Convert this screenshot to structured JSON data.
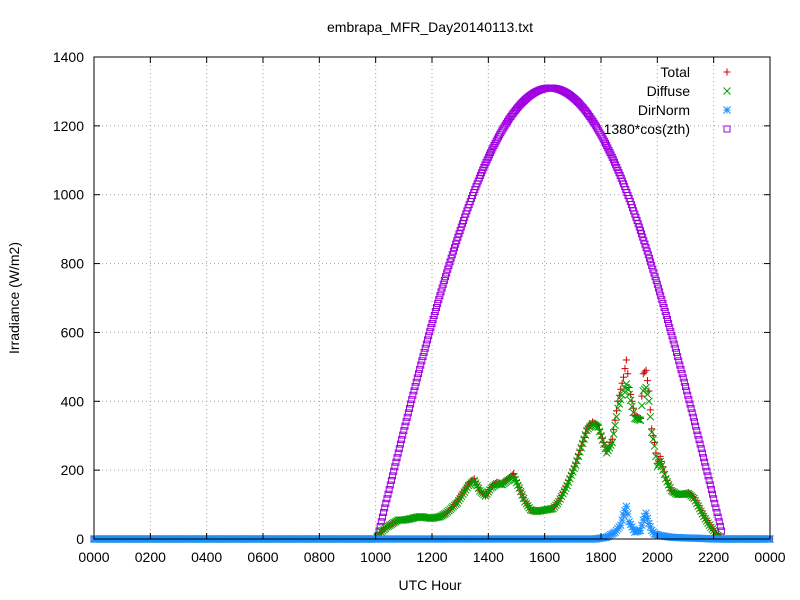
{
  "chart_data": {
    "type": "scatter",
    "title": "embrapa_MFR_Day20140113.txt",
    "xlabel": "UTC Hour",
    "ylabel": "Irradiance (W/m2)",
    "xlim": [
      0,
      24
    ],
    "ylim": [
      0,
      1400
    ],
    "grid": true,
    "legend_position": "top-right",
    "x_ticks": [
      {
        "value": 0,
        "label": "0000"
      },
      {
        "value": 2,
        "label": "0200"
      },
      {
        "value": 4,
        "label": "0400"
      },
      {
        "value": 6,
        "label": "0600"
      },
      {
        "value": 8,
        "label": "0800"
      },
      {
        "value": 10,
        "label": "1000"
      },
      {
        "value": 12,
        "label": "1200"
      },
      {
        "value": 14,
        "label": "1400"
      },
      {
        "value": 16,
        "label": "1600"
      },
      {
        "value": 18,
        "label": "1800"
      },
      {
        "value": 20,
        "label": "2000"
      },
      {
        "value": 22,
        "label": "2200"
      },
      {
        "value": 24,
        "label": "0000"
      }
    ],
    "y_ticks": [
      0,
      200,
      400,
      600,
      800,
      1000,
      1200,
      1400
    ],
    "series": [
      {
        "name": "Total",
        "marker": "plus",
        "color": "#d00000",
        "points": [
          [
            0,
            0
          ],
          [
            2,
            0
          ],
          [
            4,
            0
          ],
          [
            6,
            0
          ],
          [
            8,
            0
          ],
          [
            10,
            0
          ],
          [
            10.2,
            20
          ],
          [
            10.4,
            35
          ],
          [
            10.6,
            45
          ],
          [
            10.8,
            55
          ],
          [
            11,
            55
          ],
          [
            11.2,
            58
          ],
          [
            11.4,
            62
          ],
          [
            11.6,
            65
          ],
          [
            11.8,
            62
          ],
          [
            12,
            60
          ],
          [
            12.3,
            65
          ],
          [
            12.5,
            75
          ],
          [
            12.7,
            90
          ],
          [
            12.9,
            110
          ],
          [
            13.1,
            135
          ],
          [
            13.3,
            160
          ],
          [
            13.5,
            175
          ],
          [
            13.7,
            140
          ],
          [
            13.9,
            125
          ],
          [
            14.1,
            150
          ],
          [
            14.3,
            165
          ],
          [
            14.5,
            160
          ],
          [
            14.7,
            175
          ],
          [
            14.9,
            190
          ],
          [
            15.1,
            150
          ],
          [
            15.3,
            110
          ],
          [
            15.5,
            85
          ],
          [
            15.7,
            80
          ],
          [
            16.3,
            90
          ],
          [
            16.5,
            110
          ],
          [
            16.8,
            160
          ],
          [
            17.1,
            220
          ],
          [
            17.3,
            270
          ],
          [
            17.5,
            320
          ],
          [
            17.7,
            340
          ],
          [
            17.9,
            330
          ],
          [
            18.1,
            280
          ],
          [
            18.2,
            255
          ],
          [
            18.4,
            290
          ],
          [
            18.6,
            400
          ],
          [
            18.8,
            470
          ],
          [
            18.9,
            520
          ],
          [
            19.0,
            440
          ],
          [
            19.2,
            360
          ],
          [
            19.4,
            350
          ],
          [
            19.5,
            480
          ],
          [
            19.6,
            490
          ],
          [
            19.7,
            430
          ],
          [
            19.8,
            320
          ],
          [
            19.9,
            280
          ],
          [
            20.0,
            220
          ],
          [
            20.1,
            240
          ],
          [
            20.3,
            180
          ],
          [
            20.5,
            140
          ],
          [
            20.7,
            130
          ],
          [
            20.9,
            130
          ],
          [
            21.1,
            135
          ],
          [
            21.3,
            120
          ],
          [
            21.5,
            90
          ],
          [
            21.7,
            60
          ],
          [
            21.9,
            35
          ],
          [
            22.1,
            15
          ],
          [
            22.3,
            0
          ],
          [
            24,
            0
          ]
        ]
      },
      {
        "name": "Diffuse",
        "marker": "cross",
        "color": "#00a000",
        "points": [
          [
            0,
            0
          ],
          [
            2,
            0
          ],
          [
            4,
            0
          ],
          [
            6,
            0
          ],
          [
            8,
            0
          ],
          [
            10,
            0
          ],
          [
            10.2,
            20
          ],
          [
            10.4,
            35
          ],
          [
            10.6,
            45
          ],
          [
            10.8,
            55
          ],
          [
            11,
            55
          ],
          [
            11.2,
            58
          ],
          [
            11.4,
            62
          ],
          [
            11.6,
            65
          ],
          [
            11.8,
            62
          ],
          [
            12,
            60
          ],
          [
            12.3,
            65
          ],
          [
            12.5,
            75
          ],
          [
            12.7,
            90
          ],
          [
            12.9,
            105
          ],
          [
            13.1,
            130
          ],
          [
            13.3,
            155
          ],
          [
            13.5,
            170
          ],
          [
            13.7,
            140
          ],
          [
            13.9,
            125
          ],
          [
            14.1,
            148
          ],
          [
            14.3,
            160
          ],
          [
            14.5,
            158
          ],
          [
            14.7,
            170
          ],
          [
            14.9,
            180
          ],
          [
            15.1,
            148
          ],
          [
            15.3,
            108
          ],
          [
            15.5,
            85
          ],
          [
            15.7,
            80
          ],
          [
            16.3,
            88
          ],
          [
            16.5,
            108
          ],
          [
            16.8,
            155
          ],
          [
            17.1,
            215
          ],
          [
            17.3,
            265
          ],
          [
            17.5,
            315
          ],
          [
            17.7,
            335
          ],
          [
            17.9,
            325
          ],
          [
            18.1,
            275
          ],
          [
            18.2,
            250
          ],
          [
            18.4,
            280
          ],
          [
            18.6,
            380
          ],
          [
            18.8,
            430
          ],
          [
            18.9,
            450
          ],
          [
            19.0,
            420
          ],
          [
            19.2,
            350
          ],
          [
            19.4,
            345
          ],
          [
            19.5,
            430
          ],
          [
            19.6,
            440
          ],
          [
            19.7,
            400
          ],
          [
            19.8,
            310
          ],
          [
            19.9,
            270
          ],
          [
            20.0,
            210
          ],
          [
            20.1,
            225
          ],
          [
            20.3,
            175
          ],
          [
            20.5,
            140
          ],
          [
            20.7,
            130
          ],
          [
            20.9,
            130
          ],
          [
            21.1,
            132
          ],
          [
            21.3,
            118
          ],
          [
            21.5,
            88
          ],
          [
            21.7,
            58
          ],
          [
            21.9,
            34
          ],
          [
            22.1,
            14
          ],
          [
            22.3,
            0
          ],
          [
            24,
            0
          ]
        ]
      },
      {
        "name": "DirNorm",
        "marker": "star",
        "color": "#1e90ff",
        "points": [
          [
            0,
            0
          ],
          [
            2,
            0
          ],
          [
            4,
            0
          ],
          [
            6,
            0
          ],
          [
            8,
            0
          ],
          [
            10,
            0
          ],
          [
            11,
            0
          ],
          [
            12,
            0
          ],
          [
            13,
            0
          ],
          [
            14,
            0
          ],
          [
            15,
            0
          ],
          [
            15.8,
            0
          ],
          [
            16.3,
            0
          ],
          [
            17,
            0
          ],
          [
            17.8,
            0
          ],
          [
            18.2,
            5
          ],
          [
            18.5,
            20
          ],
          [
            18.7,
            40
          ],
          [
            18.8,
            70
          ],
          [
            18.9,
            95
          ],
          [
            19.0,
            50
          ],
          [
            19.2,
            20
          ],
          [
            19.4,
            25
          ],
          [
            19.5,
            55
          ],
          [
            19.6,
            75
          ],
          [
            19.7,
            45
          ],
          [
            19.8,
            25
          ],
          [
            19.9,
            15
          ],
          [
            20.1,
            10
          ],
          [
            20.5,
            5
          ],
          [
            21,
            3
          ],
          [
            21.5,
            2
          ],
          [
            22,
            0
          ],
          [
            24,
            0
          ]
        ]
      },
      {
        "name": "1380*cos(zth)",
        "marker": "square",
        "color": "#a000e0",
        "generator": {
          "type": "cosine-arc",
          "start": 10.0,
          "end": 22.3,
          "peak_x": 16.2,
          "peak_y": 1310,
          "step": 0.04
        }
      }
    ]
  }
}
